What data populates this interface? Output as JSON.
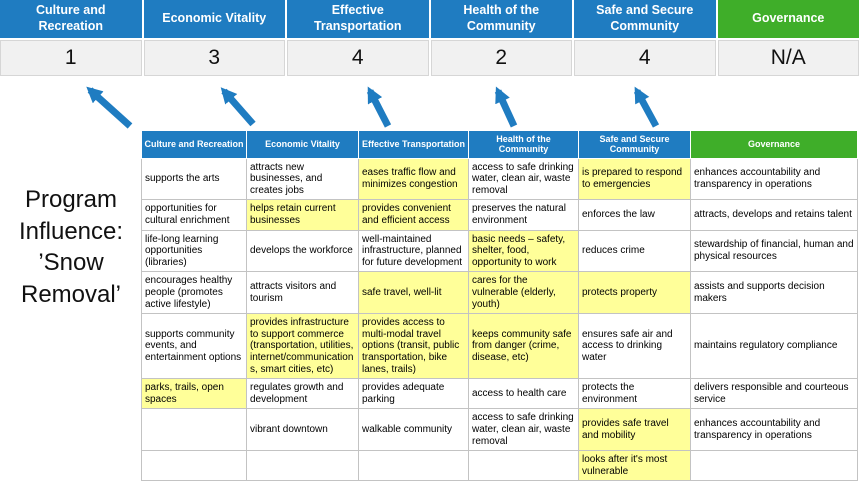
{
  "colors": {
    "header_blue": "#1F7CC1",
    "header_green": "#3FAE29",
    "highlight_yellow": "#FFFF99",
    "score_band_gray": "#F1F1F1",
    "arrow_blue": "#1F7CC1"
  },
  "title": "Program Influence: ’Snow Removal’",
  "scoreboard": {
    "columns": [
      {
        "label": "Culture and Recreation",
        "score": "1",
        "accent": "blue"
      },
      {
        "label": "Economic Vitality",
        "score": "3",
        "accent": "blue"
      },
      {
        "label": "Effective Transportation",
        "score": "4",
        "accent": "blue"
      },
      {
        "label": "Health of the Community",
        "score": "2",
        "accent": "blue"
      },
      {
        "label": "Safe and Secure Community",
        "score": "4",
        "accent": "blue"
      },
      {
        "label": "Governance",
        "score": "N/A",
        "accent": "green"
      }
    ]
  },
  "matrix": {
    "headers": [
      {
        "label": "Culture and Recreation",
        "accent": "blue"
      },
      {
        "label": "Economic Vitality",
        "accent": "blue"
      },
      {
        "label": "Effective Transportation",
        "accent": "blue"
      },
      {
        "label": "Health of the Community",
        "accent": "blue"
      },
      {
        "label": "Safe and Secure Community",
        "accent": "blue"
      },
      {
        "label": "Governance",
        "accent": "green"
      }
    ],
    "rows": [
      {
        "cells": [
          {
            "text": "supports the arts",
            "highlight": false
          },
          {
            "text": "attracts new businesses, and creates jobs",
            "highlight": false
          },
          {
            "text": "eases traffic flow and minimizes congestion",
            "highlight": true
          },
          {
            "text": "access to safe drinking water, clean air, waste removal",
            "highlight": false
          },
          {
            "text": "is prepared to respond to emergencies",
            "highlight": true
          },
          {
            "text": "enhances accountability and transparency in operations",
            "highlight": false
          }
        ]
      },
      {
        "cells": [
          {
            "text": "opportunities for cultural enrichment",
            "highlight": false
          },
          {
            "text": "helps retain current businesses",
            "highlight": true
          },
          {
            "text": "provides convenient and efficient access",
            "highlight": true
          },
          {
            "text": "preserves the natural environment",
            "highlight": false
          },
          {
            "text": "enforces the law",
            "highlight": false
          },
          {
            "text": "attracts, develops and retains talent",
            "highlight": false
          }
        ]
      },
      {
        "cells": [
          {
            "text": "life-long learning opportunities (libraries)",
            "highlight": false
          },
          {
            "text": "develops the workforce",
            "highlight": false
          },
          {
            "text": "well-maintained infrastructure, planned for future development",
            "highlight": false
          },
          {
            "text": "basic needs – safety, shelter, food, opportunity to work",
            "highlight": true
          },
          {
            "text": "reduces crime",
            "highlight": false
          },
          {
            "text": "stewardship of financial, human and physical resources",
            "highlight": false
          }
        ]
      },
      {
        "cells": [
          {
            "text": "encourages healthy people (promotes active lifestyle)",
            "highlight": false
          },
          {
            "text": "attracts visitors and tourism",
            "highlight": false
          },
          {
            "text": "safe travel, well-lit",
            "highlight": true
          },
          {
            "text": "cares for the vulnerable (elderly, youth)",
            "highlight": true
          },
          {
            "text": "protects property",
            "highlight": true
          },
          {
            "text": "assists and supports decision makers",
            "highlight": false
          }
        ]
      },
      {
        "cells": [
          {
            "text": "supports community events, and entertainment options",
            "highlight": false
          },
          {
            "text": "provides infrastructure to support commerce (transportation, utilities, internet/communications, smart cities, etc)",
            "highlight": true
          },
          {
            "text": "provides access to multi-modal travel options (transit, public transportation, bike lanes, trails)",
            "highlight": true
          },
          {
            "text": "keeps community safe from danger (crime, disease, etc)",
            "highlight": true
          },
          {
            "text": "ensures safe air and access to drinking water",
            "highlight": false
          },
          {
            "text": "maintains regulatory compliance",
            "highlight": false
          }
        ]
      },
      {
        "cells": [
          {
            "text": "parks, trails, open spaces",
            "highlight": true
          },
          {
            "text": "regulates growth and development",
            "highlight": false
          },
          {
            "text": "provides adequate parking",
            "highlight": false
          },
          {
            "text": "access to health care",
            "highlight": false
          },
          {
            "text": "protects the environment",
            "highlight": false
          },
          {
            "text": "delivers responsible and courteous service",
            "highlight": false
          }
        ]
      },
      {
        "cells": [
          {
            "text": "",
            "highlight": false
          },
          {
            "text": "vibrant downtown",
            "highlight": false
          },
          {
            "text": "walkable community",
            "highlight": false
          },
          {
            "text": "access to safe drinking water, clean air, waste removal",
            "highlight": false
          },
          {
            "text": "provides safe travel and mobility",
            "highlight": true
          },
          {
            "text": "enhances accountability and transparency in operations",
            "highlight": false
          }
        ]
      },
      {
        "cells": [
          {
            "text": "",
            "highlight": false
          },
          {
            "text": "",
            "highlight": false
          },
          {
            "text": "",
            "highlight": false
          },
          {
            "text": "",
            "highlight": false
          },
          {
            "text": "looks after it's most vulnerable",
            "highlight": true
          },
          {
            "text": "",
            "highlight": false
          }
        ]
      }
    ]
  }
}
